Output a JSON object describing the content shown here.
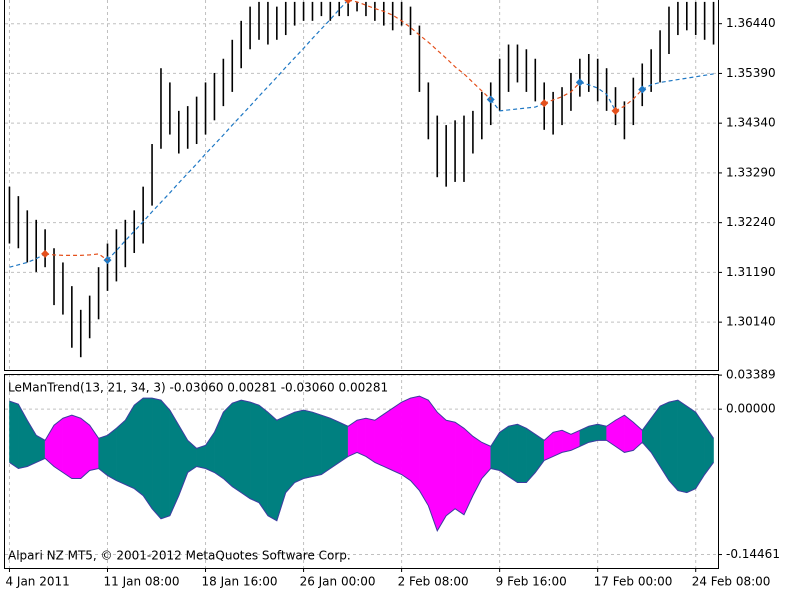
{
  "chart_data": [
    {
      "type": "range_bar",
      "high": [
        1.33,
        1.328,
        1.325,
        1.323,
        1.321,
        1.317,
        1.314,
        1.309,
        1.304,
        1.307,
        1.313,
        1.318,
        1.321,
        1.323,
        1.325,
        1.33,
        1.339,
        1.355,
        1.352,
        1.346,
        1.347,
        1.349,
        1.352,
        1.354,
        1.357,
        1.361,
        1.365,
        1.368,
        1.369,
        1.369,
        1.368,
        1.369,
        1.369,
        1.369,
        1.369,
        1.369,
        1.369,
        1.369,
        1.369,
        1.369,
        1.369,
        1.369,
        1.369,
        1.369,
        1.369,
        1.368,
        1.364,
        1.352,
        1.345,
        1.343,
        1.344,
        1.345,
        1.346,
        1.35,
        1.352,
        1.357,
        1.36,
        1.36,
        1.359,
        1.357,
        1.352,
        1.35,
        1.351,
        1.354,
        1.357,
        1.358,
        1.357,
        1.355,
        1.351,
        1.348,
        1.353,
        1.356,
        1.359,
        1.363,
        1.368,
        1.369,
        1.369,
        1.369,
        1.369,
        1.369
      ],
      "low": [
        1.318,
        1.317,
        1.314,
        1.312,
        1.313,
        1.305,
        1.303,
        1.296,
        1.294,
        1.298,
        1.302,
        1.308,
        1.31,
        1.313,
        1.316,
        1.318,
        1.326,
        1.338,
        1.341,
        1.337,
        1.338,
        1.339,
        1.341,
        1.344,
        1.347,
        1.35,
        1.355,
        1.359,
        1.361,
        1.36,
        1.361,
        1.362,
        1.364,
        1.365,
        1.365,
        1.366,
        1.365,
        1.366,
        1.366,
        1.367,
        1.366,
        1.365,
        1.364,
        1.363,
        1.364,
        1.362,
        1.35,
        1.34,
        1.332,
        1.33,
        1.331,
        1.331,
        1.337,
        1.34,
        1.343,
        1.346,
        1.35,
        1.352,
        1.35,
        1.348,
        1.342,
        1.341,
        1.343,
        1.346,
        1.349,
        1.35,
        1.348,
        1.346,
        1.343,
        1.34,
        1.343,
        1.347,
        1.35,
        1.352,
        1.358,
        1.362,
        1.363,
        1.362,
        1.361,
        1.36
      ],
      "color": "#000000",
      "lines": [
        {
          "color": "#1f78c4",
          "values": [
            1.313,
            1.3135,
            1.314,
            1.3148,
            1.3158,
            null,
            null,
            null,
            null,
            null,
            null,
            1.3145,
            1.3165,
            1.3186,
            1.3206,
            1.3226,
            1.3247,
            1.3267,
            1.3287,
            1.3308,
            1.3328,
            1.3348,
            1.3369,
            1.3389,
            1.3409,
            1.343,
            1.345,
            1.347,
            1.3491,
            1.3511,
            1.3531,
            1.3552,
            1.3572,
            1.3592,
            1.3613,
            1.3633,
            1.3653,
            1.3674,
            1.3694,
            null,
            null,
            null,
            null,
            null,
            null,
            null,
            null,
            null,
            null,
            null,
            null,
            null,
            null,
            null,
            1.3484,
            1.346,
            1.3462,
            1.3464,
            1.3466,
            1.3468,
            1.3476,
            null,
            null,
            null,
            1.352,
            1.3515,
            1.3508,
            1.3495,
            1.346,
            null,
            null,
            1.3505,
            1.3515,
            1.352,
            1.3523,
            1.3526,
            1.3529,
            1.3532,
            1.3535,
            1.3538
          ]
        },
        {
          "color": "#e4501c",
          "values": [
            null,
            null,
            null,
            null,
            1.3158,
            1.3156,
            1.3155,
            1.3155,
            1.3155,
            1.3156,
            1.3158,
            1.3145,
            null,
            null,
            null,
            null,
            null,
            null,
            null,
            null,
            null,
            null,
            null,
            null,
            null,
            null,
            null,
            null,
            null,
            null,
            null,
            null,
            null,
            null,
            null,
            null,
            null,
            null,
            1.3694,
            1.369,
            1.3683,
            1.3676,
            1.367,
            1.3662,
            1.365,
            1.3636,
            1.362,
            1.3605,
            1.3588,
            1.3571,
            1.3553,
            1.3538,
            1.352,
            1.3502,
            1.3484,
            null,
            null,
            null,
            null,
            null,
            1.3476,
            1.3483,
            1.349,
            1.35,
            1.352,
            null,
            null,
            null,
            1.346,
            1.347,
            1.3485,
            1.3505,
            null,
            null,
            null,
            null,
            null,
            null,
            null,
            null
          ]
        }
      ],
      "ylim": [
        1.2913,
        1.3694
      ],
      "yticks": [
        {
          "value": 1.3014,
          "label": "1.30140"
        },
        {
          "value": 1.3119,
          "label": "1.31190"
        },
        {
          "value": 1.3224,
          "label": "1.32240"
        },
        {
          "value": 1.3329,
          "label": "1.33290"
        },
        {
          "value": 1.3434,
          "label": "1.34340"
        },
        {
          "value": 1.3539,
          "label": "1.35390"
        },
        {
          "value": 1.3644,
          "label": "1.36440"
        }
      ],
      "grid": true
    },
    {
      "type": "band",
      "title": "LeManTrend(13, 21, 34, 3) -0.03060 0.00281 -0.03060 0.00281",
      "footer": "Alpari NZ MT5, © 2001-2012 MetaQuotes Software Corp.",
      "categories": [
        "4 Jan 2011",
        null,
        null,
        null,
        null,
        null,
        null,
        null,
        null,
        null,
        null,
        "11 Jan 08:00",
        null,
        null,
        null,
        null,
        null,
        null,
        null,
        null,
        null,
        null,
        "18 Jan 16:00",
        null,
        null,
        null,
        null,
        null,
        null,
        null,
        null,
        null,
        null,
        "26 Jan 00:00",
        null,
        null,
        null,
        null,
        null,
        null,
        null,
        null,
        null,
        null,
        "2 Feb 08:00",
        null,
        null,
        null,
        null,
        null,
        null,
        null,
        null,
        null,
        null,
        "9 Feb 16:00",
        null,
        null,
        null,
        null,
        null,
        null,
        null,
        null,
        null,
        null,
        "17 Feb 00:00",
        null,
        null,
        null,
        null,
        null,
        null,
        null,
        null,
        null,
        null,
        "24 Feb 08:00",
        null,
        null
      ],
      "upper": [
        0.008,
        0.005,
        -0.011,
        -0.026,
        -0.031,
        -0.016,
        -0.009,
        -0.006,
        -0.009,
        -0.016,
        -0.029,
        -0.026,
        -0.019,
        -0.011,
        0.004,
        0.011,
        0.011,
        0.009,
        -0.001,
        -0.016,
        -0.031,
        -0.039,
        -0.036,
        -0.023,
        -0.003,
        0.006,
        0.009,
        0.007,
        0.004,
        -0.003,
        -0.011,
        -0.007,
        -0.003,
        -0.001,
        -0.003,
        -0.006,
        -0.009,
        -0.013,
        -0.017,
        -0.011,
        -0.009,
        -0.011,
        -0.005,
        0.001,
        0.007,
        0.011,
        0.013,
        0.009,
        -0.003,
        -0.011,
        -0.013,
        -0.019,
        -0.027,
        -0.033,
        -0.037,
        -0.023,
        -0.017,
        -0.015,
        -0.019,
        -0.025,
        -0.031,
        -0.023,
        -0.021,
        -0.025,
        -0.021,
        -0.017,
        -0.015,
        -0.017,
        -0.011,
        -0.006,
        -0.013,
        -0.021,
        -0.009,
        0.003,
        0.007,
        0.009,
        0.003,
        -0.003,
        -0.016,
        -0.029
      ],
      "lower": [
        -0.053,
        -0.059,
        -0.057,
        -0.053,
        -0.049,
        -0.057,
        -0.063,
        -0.069,
        -0.069,
        -0.061,
        -0.059,
        -0.066,
        -0.071,
        -0.075,
        -0.079,
        -0.086,
        -0.099,
        -0.109,
        -0.106,
        -0.086,
        -0.063,
        -0.057,
        -0.059,
        -0.063,
        -0.069,
        -0.077,
        -0.083,
        -0.089,
        -0.093,
        -0.106,
        -0.111,
        -0.083,
        -0.073,
        -0.069,
        -0.067,
        -0.065,
        -0.059,
        -0.053,
        -0.047,
        -0.043,
        -0.047,
        -0.053,
        -0.057,
        -0.061,
        -0.065,
        -0.071,
        -0.081,
        -0.096,
        -0.121,
        -0.106,
        -0.099,
        -0.105,
        -0.086,
        -0.069,
        -0.059,
        -0.061,
        -0.067,
        -0.073,
        -0.073,
        -0.063,
        -0.051,
        -0.047,
        -0.043,
        -0.041,
        -0.037,
        -0.033,
        -0.031,
        -0.031,
        -0.037,
        -0.043,
        -0.041,
        -0.033,
        -0.043,
        -0.057,
        -0.071,
        -0.081,
        -0.083,
        -0.079,
        -0.065,
        -0.053
      ],
      "colors": [
        "#008080",
        "#008080",
        "#008080",
        "#008080",
        "#ff00ff",
        "#ff00ff",
        "#ff00ff",
        "#ff00ff",
        "#ff00ff",
        "#ff00ff",
        "#008080",
        "#008080",
        "#008080",
        "#008080",
        "#008080",
        "#008080",
        "#008080",
        "#008080",
        "#008080",
        "#008080",
        "#008080",
        "#008080",
        "#008080",
        "#008080",
        "#008080",
        "#008080",
        "#008080",
        "#008080",
        "#008080",
        "#008080",
        "#008080",
        "#008080",
        "#008080",
        "#008080",
        "#008080",
        "#008080",
        "#008080",
        "#008080",
        "#ff00ff",
        "#ff00ff",
        "#ff00ff",
        "#ff00ff",
        "#ff00ff",
        "#ff00ff",
        "#ff00ff",
        "#ff00ff",
        "#ff00ff",
        "#ff00ff",
        "#ff00ff",
        "#ff00ff",
        "#ff00ff",
        "#ff00ff",
        "#ff00ff",
        "#ff00ff",
        "#008080",
        "#008080",
        "#008080",
        "#008080",
        "#008080",
        "#008080",
        "#ff00ff",
        "#ff00ff",
        "#ff00ff",
        "#ff00ff",
        "#008080",
        "#008080",
        "#008080",
        "#ff00ff",
        "#ff00ff",
        "#ff00ff",
        "#ff00ff",
        "#008080",
        "#008080",
        "#008080",
        "#008080",
        "#008080",
        "#008080",
        "#008080",
        "#008080",
        "#008080"
      ],
      "line_color": "#3c3ca0",
      "ylim": [
        -0.158,
        0.035
      ],
      "yticks": [
        -0.14461,
        {
          "value": 0,
          "label": "0.00000"
        },
        0.03389
      ],
      "grid": true
    }
  ]
}
